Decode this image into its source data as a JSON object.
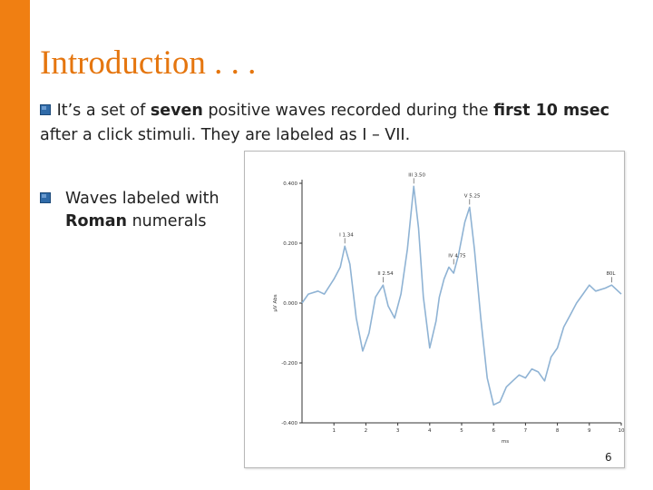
{
  "slide": {
    "title": "Introduction . . .",
    "page_number": "6",
    "accent_color": "#f07f12",
    "bullet_color": "#2f6aa8"
  },
  "bullet1": {
    "t1": " It’s a set of ",
    "b1": "seven",
    "t2": " positive waves recorded during the ",
    "b2": "first 10 msec",
    "t3": " after a click stimuli. They are labeled as I – VII."
  },
  "bullet2": {
    "t1": "Waves labeled with ",
    "b1": "Roman",
    "t2": " numerals"
  },
  "chart_data": {
    "type": "line",
    "ylabel": "µV Abs",
    "xlabel": "ms",
    "xlim": [
      0,
      10
    ],
    "ylim": [
      -0.4,
      0.4
    ],
    "x_ticks": [
      "1",
      "2",
      "3",
      "4",
      "5",
      "6",
      "7",
      "8",
      "9",
      "10"
    ],
    "y_ticks": [
      "0.400",
      "0.200",
      "0.000",
      "-0.200",
      "-0.400"
    ],
    "line_color": "#8fb3d4",
    "series": [
      {
        "x": [
          0,
          0.2,
          0.5,
          0.7,
          1.0,
          1.2,
          1.34,
          1.5,
          1.7,
          1.9,
          2.1,
          2.3,
          2.54,
          2.7,
          2.9,
          3.1,
          3.3,
          3.5,
          3.65,
          3.8,
          4.0,
          4.2,
          4.3,
          4.45,
          4.6,
          4.75,
          4.9,
          5.1,
          5.25,
          5.4,
          5.6,
          5.8,
          6.0,
          6.2,
          6.4,
          6.6,
          6.8,
          7.0,
          7.2,
          7.4,
          7.6,
          7.8,
          8.0,
          8.2,
          8.4,
          8.6,
          8.8,
          9.0,
          9.2,
          9.5,
          9.7,
          10.0
        ],
        "y": [
          0.0,
          0.03,
          0.04,
          0.03,
          0.08,
          0.12,
          0.19,
          0.13,
          -0.05,
          -0.16,
          -0.1,
          0.02,
          0.06,
          -0.01,
          -0.05,
          0.03,
          0.18,
          0.39,
          0.25,
          0.02,
          -0.15,
          -0.06,
          0.02,
          0.08,
          0.12,
          0.1,
          0.16,
          0.27,
          0.32,
          0.18,
          -0.05,
          -0.25,
          -0.34,
          -0.33,
          -0.28,
          -0.26,
          -0.24,
          -0.25,
          -0.22,
          -0.23,
          -0.26,
          -0.18,
          -0.15,
          -0.08,
          -0.04,
          0.0,
          0.03,
          0.06,
          0.04,
          0.05,
          0.06,
          0.03
        ]
      }
    ],
    "annotations": [
      {
        "text": "I 1.34",
        "x": 1.34,
        "y": 0.19
      },
      {
        "text": "II 2.54",
        "x": 2.54,
        "y": 0.06
      },
      {
        "text": "III 3.50",
        "x": 3.5,
        "y": 0.39
      },
      {
        "text": "IV 4.75",
        "x": 4.75,
        "y": 0.12
      },
      {
        "text": "V 5.25",
        "x": 5.25,
        "y": 0.32
      },
      {
        "text": "80L",
        "x": 9.7,
        "y": 0.06
      }
    ]
  }
}
